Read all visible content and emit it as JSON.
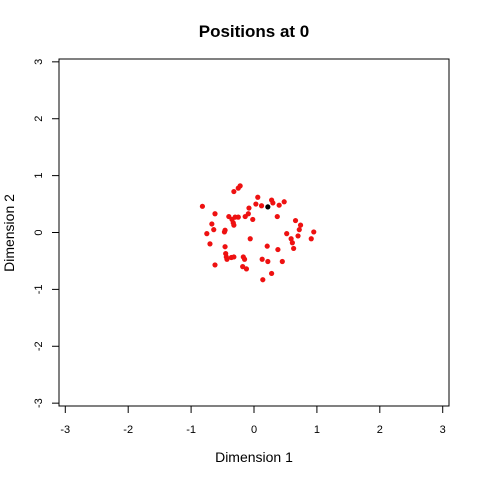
{
  "chart_data": {
    "type": "scatter",
    "title": "Positions at 0",
    "xlabel": "Dimension 1",
    "ylabel": "Dimension 2",
    "xlim": [
      -3.1,
      3.1
    ],
    "ylim": [
      -3.05,
      3.05
    ],
    "xticks": [
      -3,
      -2,
      -1,
      0,
      1,
      2,
      3
    ],
    "yticks": [
      -3,
      -2,
      -1,
      0,
      1,
      2,
      3
    ],
    "grid": false,
    "colors": {
      "points": "#ee1111",
      "highlight": "#000000",
      "axis": "#000000"
    },
    "highlight": {
      "x": 0.22,
      "y": 0.45
    },
    "points": [
      {
        "x": -0.22,
        "y": 0.82
      },
      {
        "x": -0.25,
        "y": 0.78
      },
      {
        "x": -0.32,
        "y": 0.72
      },
      {
        "x": -0.82,
        "y": 0.46
      },
      {
        "x": -0.62,
        "y": 0.33
      },
      {
        "x": -0.4,
        "y": 0.28
      },
      {
        "x": -0.35,
        "y": 0.23
      },
      {
        "x": -0.3,
        "y": 0.27
      },
      {
        "x": -0.25,
        "y": 0.27
      },
      {
        "x": -0.67,
        "y": 0.15
      },
      {
        "x": -0.64,
        "y": 0.05
      },
      {
        "x": -0.75,
        "y": -0.02
      },
      {
        "x": -0.7,
        "y": -0.2
      },
      {
        "x": -0.47,
        "y": 0.01
      },
      {
        "x": -0.46,
        "y": 0.04
      },
      {
        "x": -0.46,
        "y": -0.25
      },
      {
        "x": -0.45,
        "y": -0.37
      },
      {
        "x": -0.44,
        "y": -0.43
      },
      {
        "x": -0.43,
        "y": -0.47
      },
      {
        "x": -0.36,
        "y": -0.44
      },
      {
        "x": -0.32,
        "y": -0.43
      },
      {
        "x": -0.62,
        "y": -0.57
      },
      {
        "x": -0.17,
        "y": -0.43
      },
      {
        "x": -0.15,
        "y": -0.47
      },
      {
        "x": -0.18,
        "y": -0.6
      },
      {
        "x": -0.12,
        "y": -0.64
      },
      {
        "x": -0.32,
        "y": 0.13
      },
      {
        "x": -0.33,
        "y": 0.17
      },
      {
        "x": -0.14,
        "y": 0.28
      },
      {
        "x": -0.09,
        "y": 0.33
      },
      {
        "x": -0.08,
        "y": 0.43
      },
      {
        "x": -0.02,
        "y": 0.23
      },
      {
        "x": 0.03,
        "y": 0.5
      },
      {
        "x": 0.06,
        "y": 0.62
      },
      {
        "x": 0.12,
        "y": 0.47
      },
      {
        "x": 0.28,
        "y": 0.57
      },
      {
        "x": 0.3,
        "y": 0.52
      },
      {
        "x": 0.4,
        "y": 0.48
      },
      {
        "x": 0.48,
        "y": 0.54
      },
      {
        "x": 0.37,
        "y": 0.28
      },
      {
        "x": -0.06,
        "y": -0.11
      },
      {
        "x": 0.21,
        "y": -0.24
      },
      {
        "x": 0.22,
        "y": -0.51
      },
      {
        "x": 0.13,
        "y": -0.47
      },
      {
        "x": 0.28,
        "y": -0.72
      },
      {
        "x": 0.14,
        "y": -0.83
      },
      {
        "x": 0.38,
        "y": -0.3
      },
      {
        "x": 0.45,
        "y": -0.51
      },
      {
        "x": 0.52,
        "y": -0.02
      },
      {
        "x": 0.59,
        "y": -0.11
      },
      {
        "x": 0.61,
        "y": -0.18
      },
      {
        "x": 0.63,
        "y": -0.28
      },
      {
        "x": 0.66,
        "y": 0.21
      },
      {
        "x": 0.7,
        "y": -0.06
      },
      {
        "x": 0.72,
        "y": 0.05
      },
      {
        "x": 0.74,
        "y": 0.13
      },
      {
        "x": 0.91,
        "y": -0.11
      },
      {
        "x": 0.95,
        "y": 0.01
      }
    ]
  }
}
